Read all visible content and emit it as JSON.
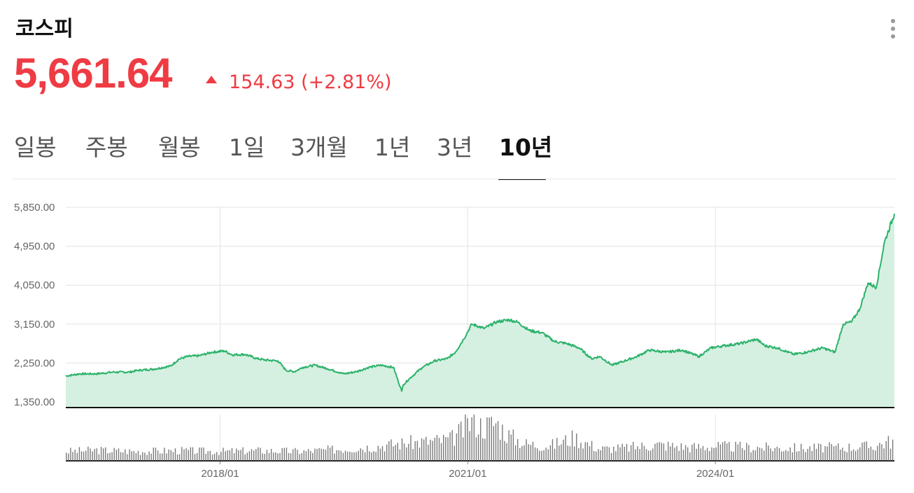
{
  "header": {
    "title": "코스피",
    "price": "5,661.64",
    "change": "154.63 (+2.81%)"
  },
  "tabs": [
    {
      "label": "일봉",
      "active": false
    },
    {
      "label": "주봉",
      "active": false
    },
    {
      "label": "월봉",
      "active": false
    },
    {
      "label": "1일",
      "active": false
    },
    {
      "label": "3개월",
      "active": false
    },
    {
      "label": "1년",
      "active": false
    },
    {
      "label": "3년",
      "active": false
    },
    {
      "label": "10년",
      "active": true
    }
  ],
  "colors": {
    "up": "#ef3b43",
    "line": "#2db36b",
    "area": "#d5f0e1"
  },
  "chart_data": {
    "type": "area",
    "title": "",
    "xlabel": "",
    "ylabel": "",
    "ylim": [
      1350,
      5850
    ],
    "y_ticks": [
      "5,850.00",
      "4,950.00",
      "4,050.00",
      "3,150.00",
      "2,250.00",
      "1,350.00"
    ],
    "y_tick_values": [
      5850,
      4950,
      4050,
      3150,
      2250,
      1350
    ],
    "x_ticks": [
      "2018/01",
      "2021/01",
      "2024/01"
    ],
    "x_tick_values": [
      2018.0,
      2021.0,
      2024.0
    ],
    "xlim": [
      2016.13,
      2026.17
    ],
    "grid": true,
    "series": [
      {
        "values_type": "price",
        "x": [
          2016.13,
          2016.3,
          2016.5,
          2016.7,
          2016.9,
          2017.0,
          2017.2,
          2017.4,
          2017.5,
          2017.6,
          2017.75,
          2017.9,
          2018.05,
          2018.15,
          2018.3,
          2018.45,
          2018.55,
          2018.7,
          2018.8,
          2018.9,
          2019.0,
          2019.15,
          2019.3,
          2019.5,
          2019.65,
          2019.8,
          2019.95,
          2020.1,
          2020.2,
          2020.22,
          2020.3,
          2020.45,
          2020.6,
          2020.75,
          2020.85,
          2020.95,
          2021.05,
          2021.2,
          2021.35,
          2021.5,
          2021.6,
          2021.75,
          2021.9,
          2022.05,
          2022.2,
          2022.35,
          2022.5,
          2022.6,
          2022.75,
          2022.9,
          2023.05,
          2023.2,
          2023.4,
          2023.6,
          2023.8,
          2023.95,
          2024.1,
          2024.3,
          2024.5,
          2024.6,
          2024.75,
          2024.95,
          2025.1,
          2025.3,
          2025.45,
          2025.55,
          2025.65,
          2025.75,
          2025.85,
          2025.95,
          2026.05,
          2026.17
        ],
        "values": [
          1950,
          2000,
          2000,
          2040,
          2040,
          2080,
          2110,
          2180,
          2340,
          2400,
          2420,
          2500,
          2530,
          2440,
          2450,
          2350,
          2320,
          2300,
          2080,
          2050,
          2150,
          2200,
          2120,
          2000,
          2050,
          2150,
          2200,
          2150,
          1600,
          1750,
          1900,
          2150,
          2300,
          2350,
          2500,
          2800,
          3150,
          3050,
          3200,
          3250,
          3200,
          3000,
          2950,
          2750,
          2700,
          2600,
          2350,
          2400,
          2200,
          2300,
          2400,
          2550,
          2500,
          2550,
          2400,
          2600,
          2650,
          2700,
          2800,
          2650,
          2600,
          2450,
          2500,
          2600,
          2500,
          3150,
          3200,
          3500,
          4100,
          4000,
          5050,
          5700
        ]
      }
    ],
    "volume": {
      "x": [
        2016.13,
        2016.5,
        2017.0,
        2017.5,
        2018.0,
        2018.5,
        2019.0,
        2019.5,
        2019.9,
        2020.25,
        2020.5,
        2020.8,
        2020.95,
        2021.05,
        2021.2,
        2021.35,
        2021.5,
        2021.7,
        2022.0,
        2022.3,
        2022.6,
        2022.9,
        2023.3,
        2023.7,
        2024.0,
        2024.4,
        2024.8,
        2025.2,
        2025.6,
        2025.9,
        2026.17
      ],
      "values": [
        0.22,
        0.25,
        0.22,
        0.24,
        0.22,
        0.24,
        0.22,
        0.28,
        0.34,
        0.42,
        0.45,
        0.5,
        0.72,
        0.95,
        0.8,
        0.9,
        0.6,
        0.4,
        0.35,
        0.55,
        0.28,
        0.3,
        0.38,
        0.32,
        0.34,
        0.32,
        0.3,
        0.3,
        0.32,
        0.34,
        0.48
      ]
    }
  }
}
